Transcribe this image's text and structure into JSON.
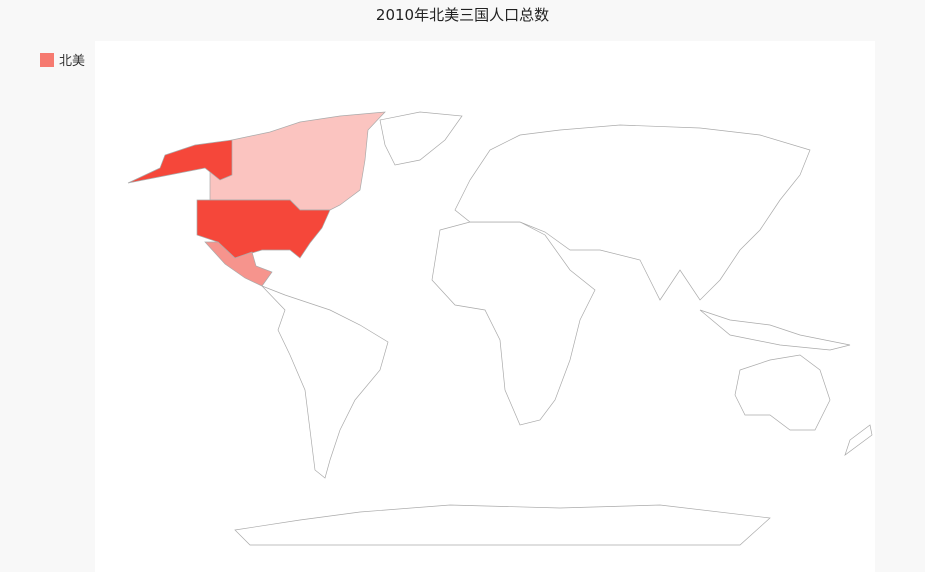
{
  "title": "2010年北美三国人口总数",
  "legend": {
    "label": "北美",
    "color": "#f67a70"
  },
  "map": {
    "type": "world",
    "highlighted_regions": [
      {
        "name": "United States",
        "color": "#f5473a"
      },
      {
        "name": "Canada",
        "color": "#fbc4c0"
      },
      {
        "name": "Mexico",
        "color": "#f6948d"
      }
    ],
    "default_fill": "#ffffff",
    "border_color": "#aaaaaa"
  }
}
